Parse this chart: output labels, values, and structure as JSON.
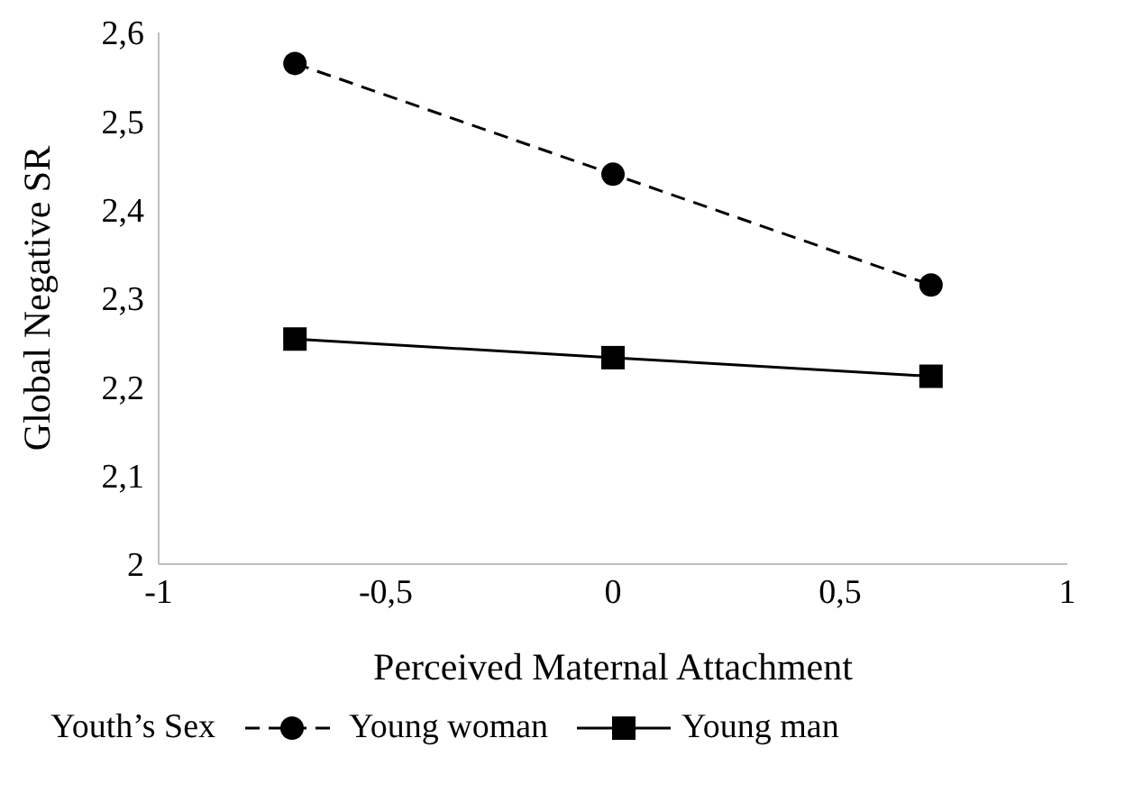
{
  "chart_data": {
    "type": "line",
    "xlabel": "Perceived Maternal Attachment",
    "ylabel": "Global Negative SR",
    "legend_title": "Youth’s Sex",
    "legend": "bottom",
    "grid": false,
    "x": [
      -0.7,
      0,
      0.7
    ],
    "xlim": [
      -1,
      1
    ],
    "xticks": [
      -1,
      {
        "value": -0.5,
        "label": "-0,5"
      },
      0,
      {
        "value": 0.5,
        "label": "0,5"
      },
      1
    ],
    "ylim": [
      2,
      2.6
    ],
    "yticks": [
      2,
      {
        "value": 2.1,
        "label": "2,1"
      },
      {
        "value": 2.2,
        "label": "2,2"
      },
      {
        "value": 2.3,
        "label": "2,3"
      },
      {
        "value": 2.4,
        "label": "2,4"
      },
      {
        "value": 2.5,
        "label": "2,5"
      },
      {
        "value": 2.6,
        "label": "2,6"
      }
    ],
    "series": [
      {
        "name": "Young woman",
        "color": "#000000",
        "values": [
          2.565,
          2.44,
          2.315
        ],
        "marker": "circle",
        "line_style": "dashed"
      },
      {
        "name": "Young man",
        "color": "#000000",
        "values": [
          2.254,
          2.233,
          2.212
        ],
        "marker": "square",
        "line_style": "solid"
      }
    ]
  }
}
